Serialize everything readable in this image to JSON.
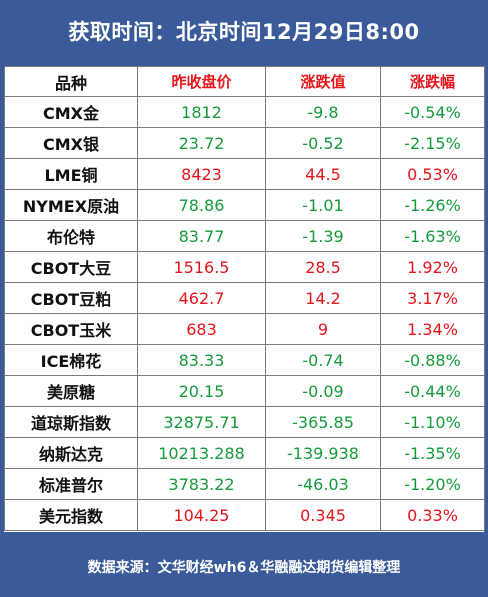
{
  "title": "获取时间：北京时间12月29日8:00",
  "headers": [
    "品种",
    "昨收盘价",
    "涨跌值",
    "涨跌幅"
  ],
  "colors": {
    "up": "#e3161c",
    "down": "#169a3c",
    "frame": "#3a5a9a"
  },
  "rows": [
    {
      "name": "CMX金",
      "close": "1812",
      "change": "-9.8",
      "pct": "-0.54%",
      "trend": "down"
    },
    {
      "name": "CMX银",
      "close": "23.72",
      "change": "-0.52",
      "pct": "-2.15%",
      "trend": "down"
    },
    {
      "name": "LME铜",
      "close": "8423",
      "change": "44.5",
      "pct": "0.53%",
      "trend": "up"
    },
    {
      "name": "NYMEX原油",
      "close": "78.86",
      "change": "-1.01",
      "pct": "-1.26%",
      "trend": "down"
    },
    {
      "name": "布伦特",
      "close": "83.77",
      "change": "-1.39",
      "pct": "-1.63%",
      "trend": "down"
    },
    {
      "name": "CBOT大豆",
      "close": "1516.5",
      "change": "28.5",
      "pct": "1.92%",
      "trend": "up"
    },
    {
      "name": "CBOT豆粕",
      "close": "462.7",
      "change": "14.2",
      "pct": "3.17%",
      "trend": "up"
    },
    {
      "name": "CBOT玉米",
      "close": "683",
      "change": "9",
      "pct": "1.34%",
      "trend": "up"
    },
    {
      "name": "ICE棉花",
      "close": "83.33",
      "change": "-0.74",
      "pct": "-0.88%",
      "trend": "down"
    },
    {
      "name": "美原糖",
      "close": "20.15",
      "change": "-0.09",
      "pct": "-0.44%",
      "trend": "down"
    },
    {
      "name": "道琼斯指数",
      "close": "32875.71",
      "change": "-365.85",
      "pct": "-1.10%",
      "trend": "down"
    },
    {
      "name": "纳斯达克",
      "close": "10213.288",
      "change": "-139.938",
      "pct": "-1.35%",
      "trend": "down"
    },
    {
      "name": "标准普尔",
      "close": "3783.22",
      "change": "-46.03",
      "pct": "-1.20%",
      "trend": "down"
    },
    {
      "name": "美元指数",
      "close": "104.25",
      "change": "0.345",
      "pct": "0.33%",
      "trend": "up"
    }
  ],
  "footer": "数据来源：文华财经wh6＆华融融达期货编辑整理"
}
